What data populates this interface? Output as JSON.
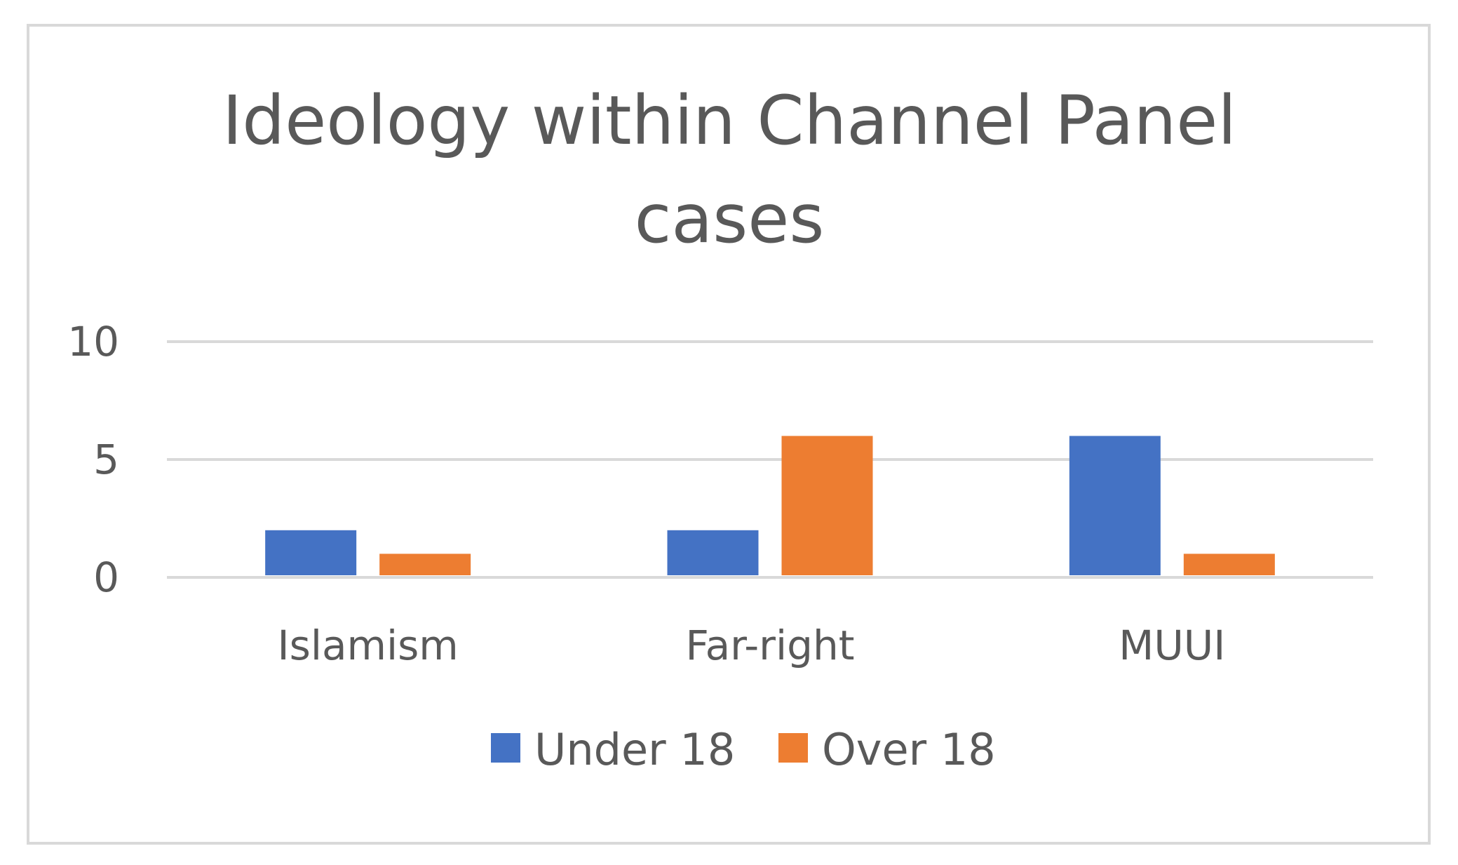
{
  "chart_data": {
    "type": "bar",
    "title": "Ideology within Channel Panel cases",
    "title_lines": [
      "Ideology within Channel Panel",
      "cases"
    ],
    "categories": [
      "Islamism",
      "Far-right",
      "MUUI"
    ],
    "series": [
      {
        "name": "Under 18",
        "values": [
          2,
          2,
          6
        ],
        "color": "#4472c4"
      },
      {
        "name": "Over 18",
        "values": [
          1,
          6,
          1
        ],
        "color": "#ed7d31"
      }
    ],
    "ylim": [
      0,
      10
    ],
    "yticks": [
      0,
      5,
      10
    ],
    "xlabel": "",
    "ylabel": "",
    "grid": true,
    "legend_position": "bottom",
    "gridline_color": "#d9d9d9",
    "text_color": "#595959"
  }
}
